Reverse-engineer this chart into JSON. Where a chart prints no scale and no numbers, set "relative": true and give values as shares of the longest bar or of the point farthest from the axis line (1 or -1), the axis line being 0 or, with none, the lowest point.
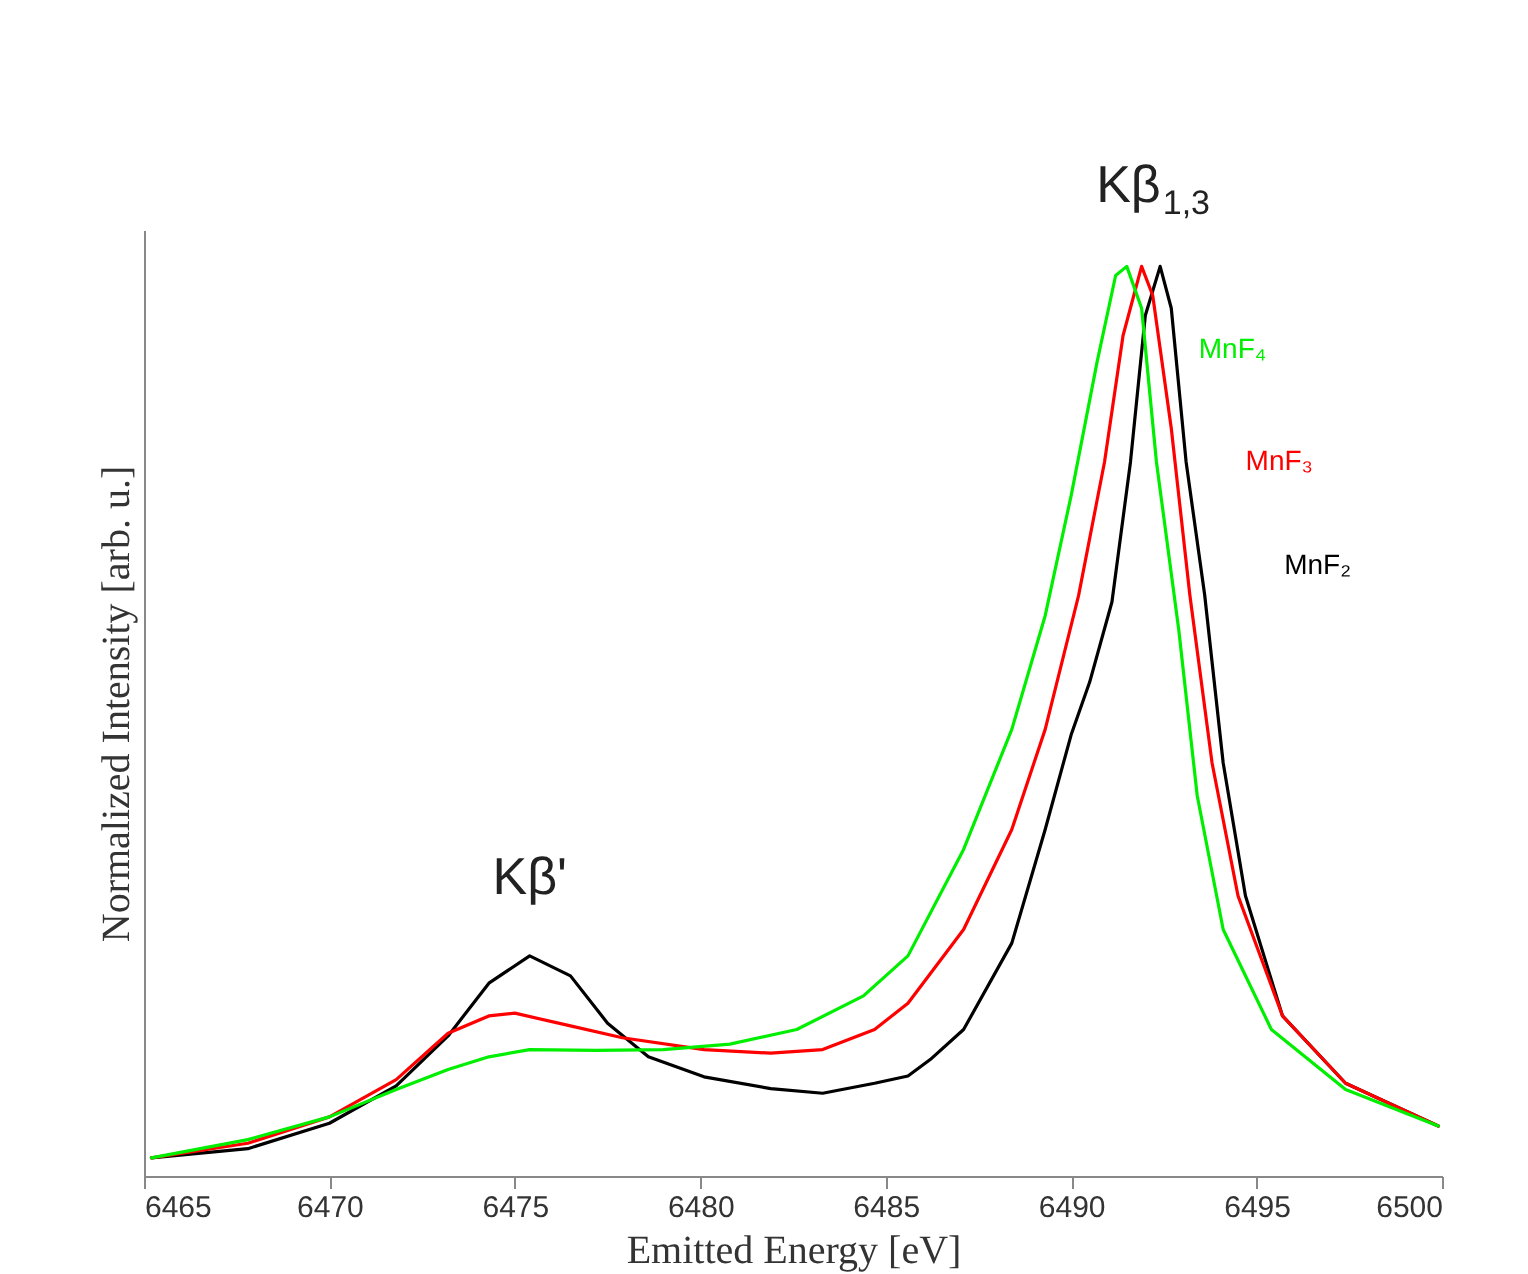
{
  "chart_data": {
    "type": "line",
    "xlabel": "Emitted Energy [eV]",
    "ylabel": "Normalized Intensity [arb. u.]",
    "relative": true,
    "xlim": [
      6465,
      6500
    ],
    "xticks": [
      6465,
      6470,
      6475,
      6480,
      6485,
      6490,
      6495,
      6500
    ],
    "grid": false,
    "legend": false,
    "marker": "none",
    "line_style": "solid",
    "annotations": [
      {
        "text": "Kβ'",
        "x": 6475.4,
        "y": 0.24
      },
      {
        "text": "Kβ$_{1,3}$",
        "x": 6492.2,
        "y": 1
      }
    ],
    "series": [
      {
        "name": "MnF₂",
        "color": "#000000",
        "x": [
          6465.2,
          6467.8,
          6470.0,
          6471.8,
          6473.2,
          6474.3,
          6475.4,
          6476.5,
          6477.5,
          6478.6,
          6480.1,
          6481.9,
          6483.3,
          6484.7,
          6485.6,
          6486.2,
          6487.1,
          6488.4,
          6489.3,
          6490.0,
          6490.5,
          6491.1,
          6491.6,
          6492.0,
          6492.4,
          6492.7,
          6493.1,
          6493.6,
          6494.1,
          6494.7,
          6495.7,
          6497.4,
          6499.9
        ],
        "values": [
          0.02,
          0.03,
          0.058,
          0.099,
          0.154,
          0.212,
          0.242,
          0.22,
          0.168,
          0.131,
          0.109,
          0.096,
          0.091,
          0.102,
          0.11,
          0.128,
          0.161,
          0.256,
          0.381,
          0.485,
          0.543,
          0.631,
          0.785,
          0.946,
          1,
          0.954,
          0.785,
          0.639,
          0.454,
          0.308,
          0.176,
          0.102,
          0.055
        ]
      },
      {
        "name": "MnF₃",
        "color": "#ff0000",
        "x": [
          6465.2,
          6467.8,
          6470.0,
          6471.8,
          6473.2,
          6474.3,
          6475.0,
          6476.5,
          6477.9,
          6480.1,
          6481.9,
          6483.3,
          6484.7,
          6485.6,
          6487.1,
          6488.4,
          6489.3,
          6490.2,
          6490.9,
          6491.4,
          6491.9,
          6492.2,
          6492.7,
          6493.2,
          6493.8,
          6494.5,
          6495.7,
          6497.4,
          6499.9
        ],
        "values": [
          0.02,
          0.036,
          0.065,
          0.106,
          0.157,
          0.176,
          0.179,
          0.165,
          0.152,
          0.139,
          0.135,
          0.139,
          0.161,
          0.19,
          0.271,
          0.381,
          0.491,
          0.638,
          0.785,
          0.924,
          1,
          0.968,
          0.822,
          0.639,
          0.454,
          0.308,
          0.176,
          0.102,
          0.055
        ]
      },
      {
        "name": "MnF₄",
        "color": "#00ee00",
        "x": [
          6465.2,
          6467.8,
          6470.0,
          6471.8,
          6473.2,
          6474.3,
          6475.4,
          6477.2,
          6479.0,
          6480.8,
          6482.6,
          6484.4,
          6485.6,
          6487.1,
          6488.4,
          6489.3,
          6490.0,
          6490.7,
          6491.2,
          6491.5,
          6491.9,
          6492.3,
          6492.9,
          6493.4,
          6494.1,
          6495.4,
          6497.4,
          6499.9
        ],
        "values": [
          0.02,
          0.04,
          0.065,
          0.095,
          0.117,
          0.131,
          0.139,
          0.138,
          0.139,
          0.145,
          0.161,
          0.198,
          0.242,
          0.359,
          0.491,
          0.616,
          0.748,
          0.895,
          0.99,
          1,
          0.954,
          0.785,
          0.601,
          0.418,
          0.271,
          0.161,
          0.095,
          0.055
        ]
      }
    ]
  }
}
